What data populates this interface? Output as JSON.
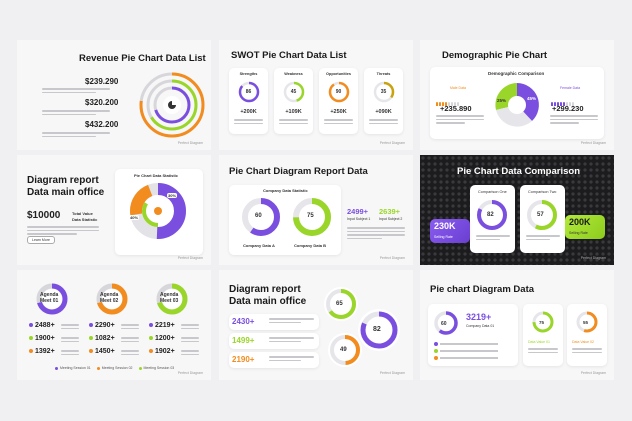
{
  "colors": {
    "purple": "#7a4fe0",
    "green": "#9ad62a",
    "orange": "#f28c1e",
    "grey": "#d7d7db"
  },
  "footer": "Perfect Diagram",
  "s1": {
    "title": "Revenue Pie Chart Data List",
    "v1": "$239.290",
    "v2": "$320.200",
    "v3": "$432.200"
  },
  "s2": {
    "title": "SWOT Pie Chart Data List",
    "cards": [
      {
        "label": "Strengths",
        "pct": "86",
        "value": "+200K",
        "fill": 0.86,
        "color": "#7a4fe0"
      },
      {
        "label": "Weakness",
        "pct": "45",
        "value": "+109K",
        "fill": 0.45,
        "color": "#9ad62a"
      },
      {
        "label": "Opportunities",
        "pct": "90",
        "value": "+250K",
        "fill": 0.9,
        "color": "#f28c1e"
      },
      {
        "label": "Threats",
        "pct": "35",
        "value": "+090K",
        "fill": 0.35,
        "color": "#c9a20f"
      }
    ]
  },
  "s3": {
    "title": "Demographic Pie Chart",
    "subtitle": "Demographic Comparison",
    "male": "Male Data",
    "female": "Female Data",
    "p1": "25%",
    "p2": "45%",
    "v1": "+235.890",
    "v2": "+299.230"
  },
  "s4": {
    "title1": "Diagram report",
    "title2": "Data main office",
    "big": "$10000",
    "sub1": "Total Value",
    "sub2": "Data Statistic",
    "chip": "Learn More",
    "card_title": "Pie Chart Data Statistic",
    "pct": "40%",
    "pct2": "30%"
  },
  "s5": {
    "title": "Pie Chart Diagram Report Data",
    "card_title": "Company Data Statistic",
    "a_pct": "60",
    "a_label": "Company Data A",
    "b_pct": "75",
    "b_label": "Company Data B",
    "n1": "2499+",
    "n1_label": "Input Subject 1",
    "n2": "2639+",
    "n2_label": "Input Subject 2"
  },
  "s6": {
    "title": "Pie Chart Data Comparison",
    "c1_label": "Comparison One",
    "c1_pct": "82",
    "c1_value": "230K",
    "c1_sub": "Selling Rate",
    "c2_label": "Comparison Two",
    "c2_pct": "57",
    "c2_value": "200K",
    "c2_sub": "Selling Rate"
  },
  "s7": {
    "meets": [
      {
        "label1": "Agenda",
        "label2": "Meet 01"
      },
      {
        "label1": "Agenda",
        "label2": "Meet 02"
      },
      {
        "label1": "Agenda",
        "label2": "Meet 03"
      }
    ],
    "rows": [
      [
        "2488+",
        "2290+",
        "2219+"
      ],
      [
        "1900+",
        "1082+",
        "1200+"
      ],
      [
        "1392+",
        "1450+",
        "1902+"
      ]
    ],
    "legend": [
      "Meeting Session 01",
      "Meeting Session 02",
      "Meeting Session 03"
    ]
  },
  "s8": {
    "title1": "Diagram report",
    "title2": "Data main office",
    "n1": "2430+",
    "n2": "1499+",
    "n3": "2190+",
    "p1": "65",
    "p2": "82",
    "p3": "49"
  },
  "s9": {
    "title": "Pie chart Diagram Data",
    "p1": "60",
    "big": "3219+",
    "big_label": "Company Data 01",
    "p2": "75",
    "p2_label": "Data Value 01",
    "p3": "55",
    "p3_label": "Data Value 02"
  }
}
